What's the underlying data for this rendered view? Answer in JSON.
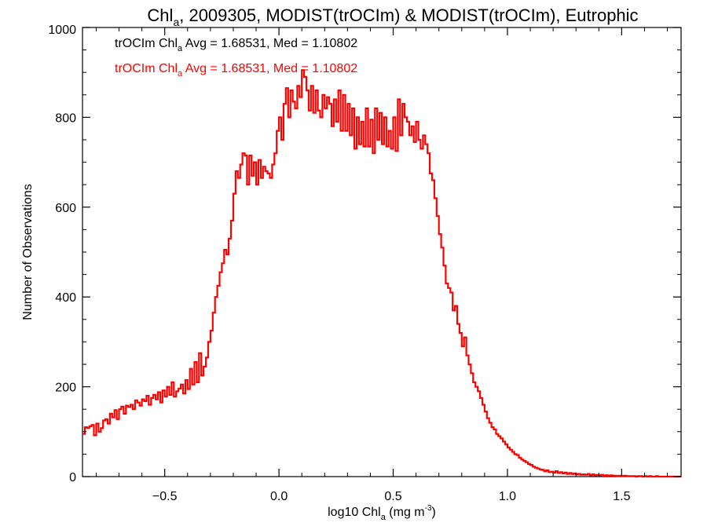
{
  "chart_data": {
    "type": "line",
    "title_main": "Chl",
    "title_sub": "a",
    "title_rest": ", 2009305, MODIST(trOCIm) & MODIST(trOCIm), Eutrophic",
    "xlabel_pre": "log10 Chl",
    "xlabel_sub": "a",
    "xlabel_post": " (mg m",
    "xlabel_sup": "-3",
    "xlabel_end": ")",
    "ylabel": "Number of Observations",
    "xlim": [
      -0.86,
      1.76
    ],
    "ylim": [
      0,
      1000
    ],
    "x_ticks": [
      -0.5,
      0.0,
      0.5,
      1.0,
      1.5
    ],
    "x_tick_labels": [
      "−0.5",
      "0.0",
      "0.5",
      "1.0",
      "1.5"
    ],
    "y_ticks": [
      0,
      200,
      400,
      600,
      800,
      1000
    ],
    "y_tick_labels": [
      "0",
      "200",
      "400",
      "600",
      "800",
      "1000"
    ],
    "legend": [
      {
        "pre": "trOCIm Chl",
        "sub": "a",
        "post": " Avg = 1.68531, Med = 1.10802",
        "color": "#000000"
      },
      {
        "pre": "trOCIm Chl",
        "sub": "a",
        "post": " Avg = 1.68531, Med = 1.10802",
        "color": "#ff0000"
      }
    ],
    "series_color": "#ff0000",
    "bin_width": 0.01,
    "x_start": -0.86,
    "series": [
      {
        "values": [
          95,
          110,
          108,
          112,
          115,
          92,
          118,
          100,
          108,
          125,
          128,
          118,
          140,
          132,
          148,
          128,
          150,
          156,
          140,
          158,
          155,
          160,
          150,
          170,
          165,
          158,
          172,
          168,
          180,
          160,
          175,
          182,
          172,
          188,
          165,
          192,
          178,
          200,
          182,
          210,
          178,
          190,
          196,
          205,
          185,
          215,
          195,
          240,
          205,
          255,
          210,
          275,
          225,
          245,
          265,
          300,
          325,
          365,
          400,
          425,
          455,
          475,
          505,
          495,
          530,
          570,
          630,
          680,
          665,
          695,
          720,
          715,
          650,
          715,
          670,
          700,
          650,
          705,
          665,
          690,
          680,
          675,
          665,
          695,
          720,
          770,
          800,
          750,
          830,
          865,
          800,
          860,
          835,
          820,
          870,
          845,
          905,
          890,
          860,
          815,
          870,
          810,
          860,
          815,
          800,
          850,
          820,
          845,
          830,
          780,
          840,
          790,
          860,
          770,
          850,
          770,
          830,
          760,
          820,
          730,
          800,
          740,
          790,
          735,
          820,
          735,
          795,
          720,
          820,
          750,
          810,
          740,
          800,
          735,
          770,
          730,
          800,
          725,
          840,
          760,
          830,
          800,
          790,
          760,
          780,
          745,
          790,
          750,
          730,
          760,
          740,
          720,
          675,
          660,
          620,
          580,
          540,
          510,
          470,
          430,
          420,
          410,
          370,
          380,
          340,
          320,
          290,
          310,
          270,
          250,
          230,
          210,
          200,
          190,
          175,
          160,
          145,
          130,
          120,
          110,
          105,
          95,
          90,
          85,
          78,
          72,
          65,
          60,
          55,
          50,
          48,
          42,
          38,
          35,
          32,
          28,
          26,
          22,
          20,
          18,
          16,
          15,
          12,
          14,
          10,
          11,
          9,
          12,
          8,
          10,
          7,
          9,
          6,
          8,
          6,
          7,
          5,
          6,
          4,
          5,
          4,
          6,
          3,
          5,
          3,
          4,
          3,
          4,
          2,
          3,
          2,
          3,
          2,
          2,
          1,
          2,
          1,
          2,
          1,
          1,
          1,
          1,
          0,
          1,
          1,
          0,
          1,
          0,
          1,
          0,
          0,
          1,
          0,
          0,
          0,
          0,
          0,
          0,
          0,
          0,
          0,
          0,
          0,
          0,
          0,
          0,
          0,
          0,
          0,
          0
        ]
      }
    ]
  }
}
